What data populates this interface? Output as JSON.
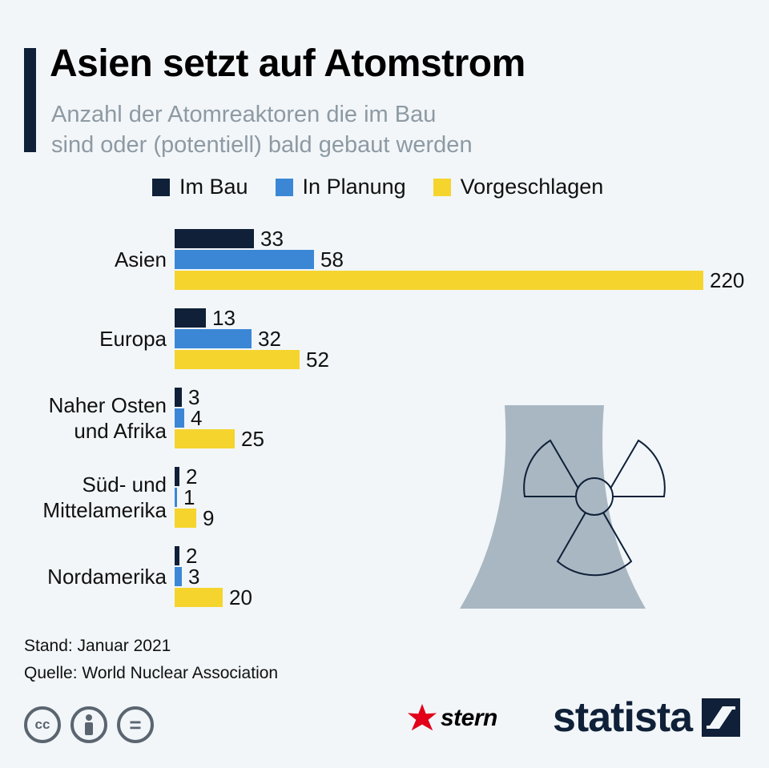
{
  "header": {
    "title": "Asien setzt auf Atomstrom",
    "subtitle_line1": "Anzahl der Atomreaktoren die im Bau",
    "subtitle_line2": "sind oder (potentiell) bald gebaut werden"
  },
  "legend": [
    {
      "label": "Im Bau",
      "color": "#0f2038"
    },
    {
      "label": "In Planung",
      "color": "#3b87d6"
    },
    {
      "label": "Vorgeschlagen",
      "color": "#f5d42e"
    }
  ],
  "chart_data": {
    "type": "bar",
    "orientation": "horizontal",
    "categories": [
      [
        "Asien"
      ],
      [
        "Europa"
      ],
      [
        "Naher Osten",
        "und Afrika"
      ],
      [
        "Süd- und",
        "Mittelamerika"
      ],
      [
        "Nordamerika"
      ]
    ],
    "series": [
      {
        "name": "Im Bau",
        "color": "#0f2038",
        "values": [
          33,
          13,
          3,
          2,
          2
        ]
      },
      {
        "name": "In Planung",
        "color": "#3b87d6",
        "values": [
          58,
          32,
          4,
          1,
          3
        ]
      },
      {
        "name": "Vorgeschlagen",
        "color": "#f5d42e",
        "values": [
          220,
          52,
          25,
          9,
          20
        ]
      }
    ],
    "xlim": [
      0,
      220
    ],
    "grid": false,
    "legend_position": "top"
  },
  "footer": {
    "stand": "Stand: Januar 2021",
    "quelle": "Quelle: World Nuclear Association"
  },
  "license_icons": [
    {
      "name": "cc-icon",
      "glyph": "cc"
    },
    {
      "name": "attribution-icon",
      "glyph": ""
    },
    {
      "name": "no-derivatives-icon",
      "glyph": "="
    }
  ],
  "brands": {
    "stern": "stern",
    "statista": "statista"
  }
}
